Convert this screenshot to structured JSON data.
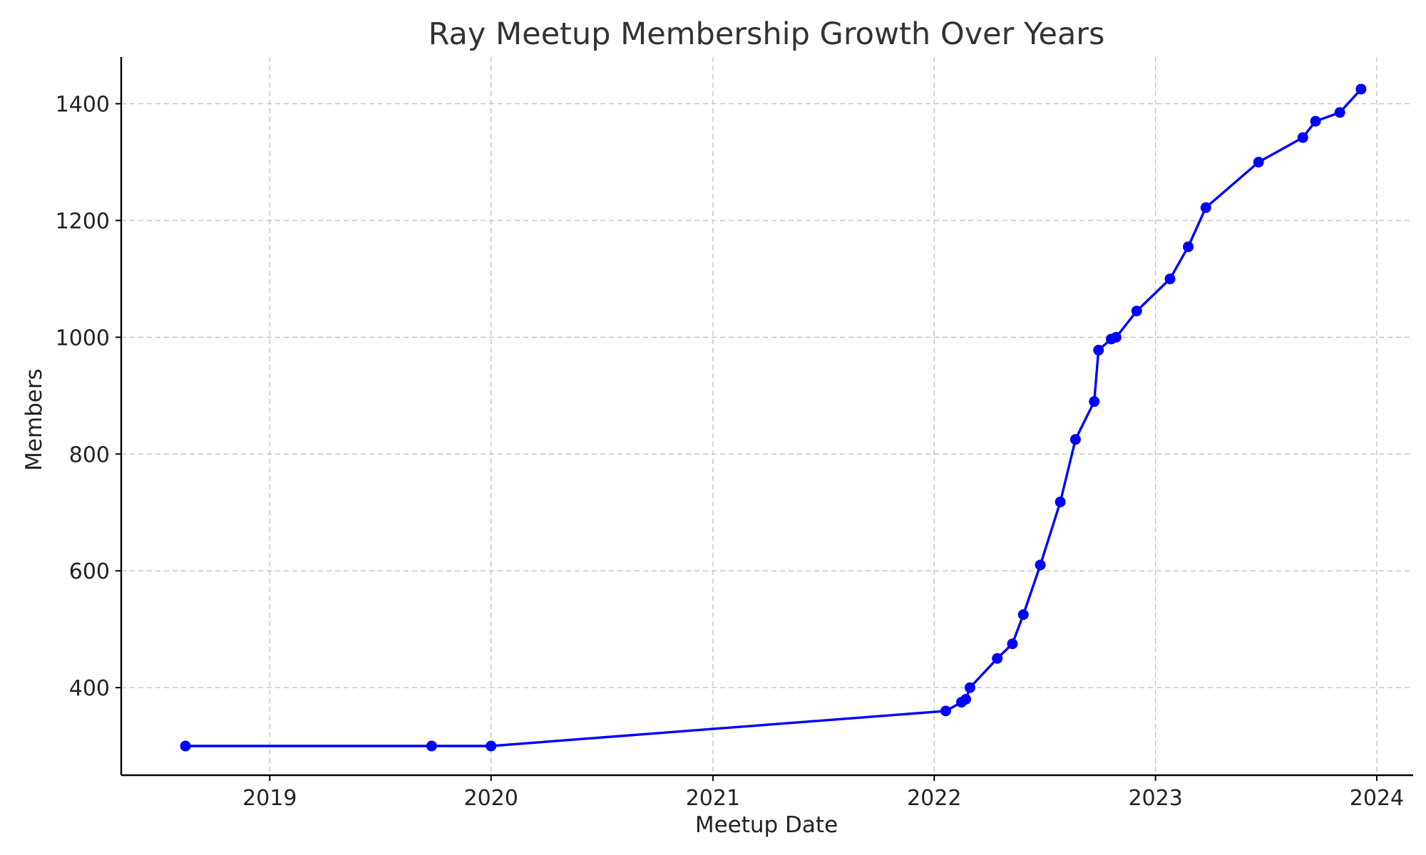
{
  "chart_data": {
    "type": "line",
    "title": "Ray Meetup Membership Growth Over Years",
    "xlabel": "Meetup Date",
    "ylabel": "Members",
    "x_axis_type": "date",
    "xlim": [
      "2018-05-01",
      "2024-03-01"
    ],
    "ylim": [
      250,
      1480
    ],
    "xticks": [
      {
        "date": "2019-01-01",
        "label": "2019"
      },
      {
        "date": "2020-01-01",
        "label": "2020"
      },
      {
        "date": "2021-01-01",
        "label": "2021"
      },
      {
        "date": "2022-01-01",
        "label": "2022"
      },
      {
        "date": "2023-01-01",
        "label": "2023"
      },
      {
        "date": "2024-01-01",
        "label": "2024"
      }
    ],
    "yticks": [
      400,
      600,
      800,
      1000,
      1200,
      1400
    ],
    "grid": true,
    "colors": {
      "series": "#0000ff",
      "axis": "#000000",
      "grid": "#c4c4c4"
    },
    "series": [
      {
        "marker": "circle",
        "points": [
          {
            "x": "2018-08-15",
            "y": 300
          },
          {
            "x": "2019-09-25",
            "y": 300
          },
          {
            "x": "2020-01-01",
            "y": 300
          },
          {
            "x": "2022-01-20",
            "y": 360
          },
          {
            "x": "2022-02-15",
            "y": 375
          },
          {
            "x": "2022-02-22",
            "y": 380
          },
          {
            "x": "2022-03-01",
            "y": 400
          },
          {
            "x": "2022-04-15",
            "y": 450
          },
          {
            "x": "2022-05-10",
            "y": 475
          },
          {
            "x": "2022-05-28",
            "y": 525
          },
          {
            "x": "2022-06-25",
            "y": 610
          },
          {
            "x": "2022-07-28",
            "y": 718
          },
          {
            "x": "2022-08-22",
            "y": 825
          },
          {
            "x": "2022-09-22",
            "y": 890
          },
          {
            "x": "2022-09-29",
            "y": 978
          },
          {
            "x": "2022-10-20",
            "y": 997
          },
          {
            "x": "2022-10-28",
            "y": 1000
          },
          {
            "x": "2022-12-01",
            "y": 1045
          },
          {
            "x": "2023-01-25",
            "y": 1100
          },
          {
            "x": "2023-02-24",
            "y": 1155
          },
          {
            "x": "2023-03-25",
            "y": 1222
          },
          {
            "x": "2023-06-20",
            "y": 1300
          },
          {
            "x": "2023-09-01",
            "y": 1342
          },
          {
            "x": "2023-09-22",
            "y": 1370
          },
          {
            "x": "2023-11-01",
            "y": 1385
          },
          {
            "x": "2023-12-06",
            "y": 1425
          }
        ]
      }
    ]
  }
}
